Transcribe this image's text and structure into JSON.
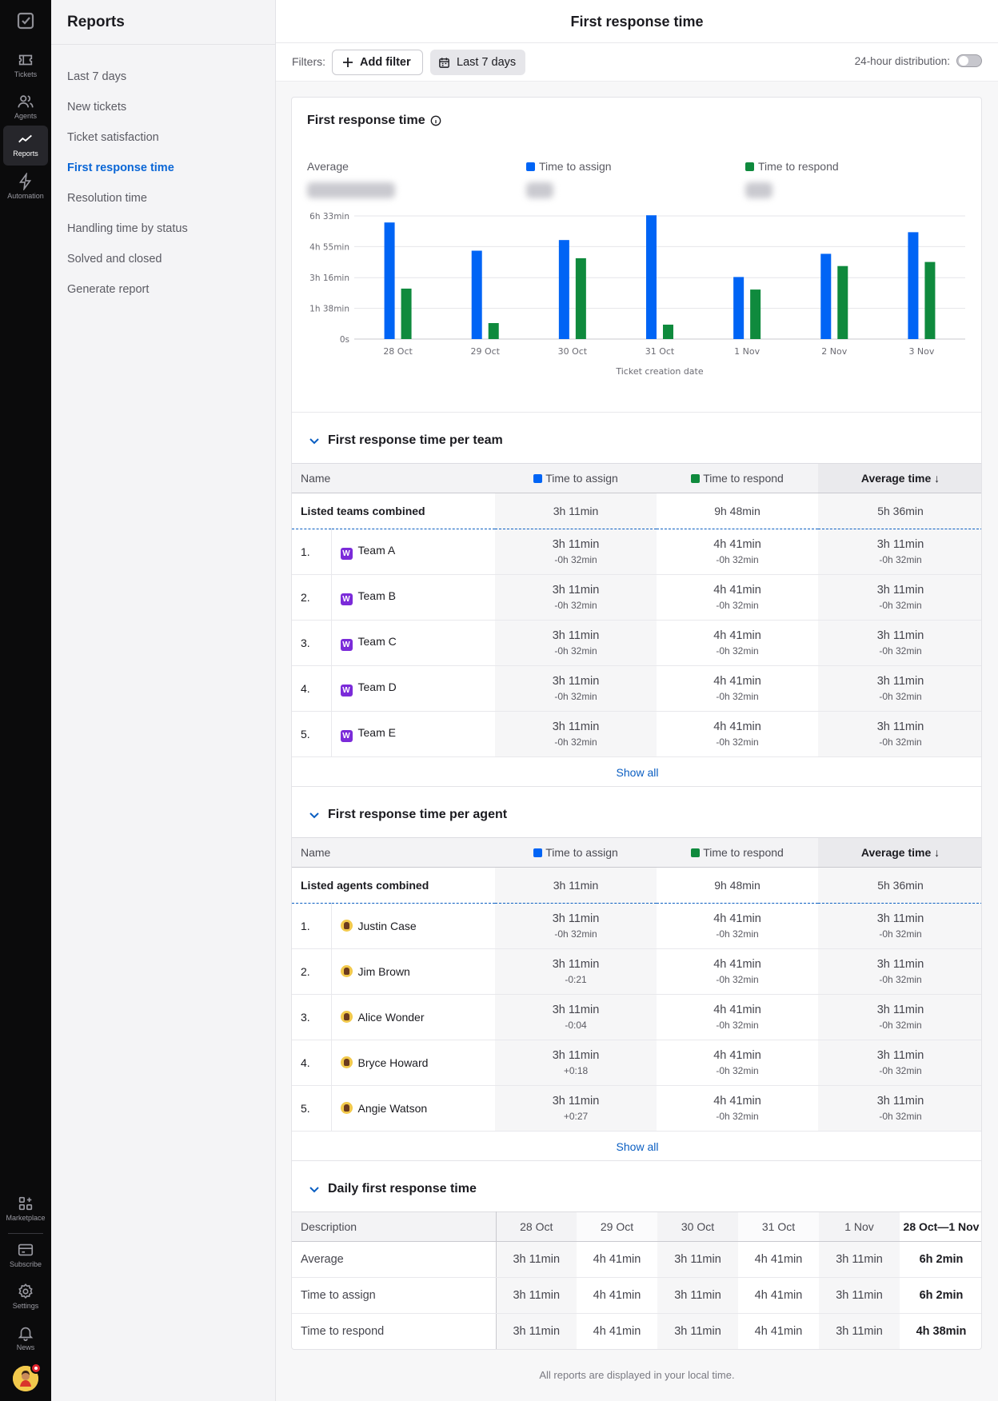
{
  "rail": {
    "items": [
      {
        "id": "tickets",
        "label": "Tickets",
        "icon": "ticket-icon"
      },
      {
        "id": "agents",
        "label": "Agents",
        "icon": "agents-icon"
      },
      {
        "id": "reports",
        "label": "Reports",
        "icon": "chart-line-icon"
      },
      {
        "id": "automation",
        "label": "Automation",
        "icon": "lightning-icon"
      }
    ],
    "bottom": [
      {
        "id": "marketplace",
        "label": "Marketplace",
        "icon": "marketplace-icon"
      },
      {
        "id": "subscribe",
        "label": "Subscribe",
        "icon": "card-icon"
      },
      {
        "id": "settings",
        "label": "Settings",
        "icon": "gear-icon"
      },
      {
        "id": "news",
        "label": "News",
        "icon": "bell-icon"
      }
    ]
  },
  "subnav": {
    "title": "Reports",
    "items": [
      "Last 7 days",
      "New tickets",
      "Ticket satisfaction",
      "First response time",
      "Resolution time",
      "Handling time by status",
      "Solved and closed",
      "Generate report"
    ],
    "active_index": 3
  },
  "page": {
    "title": "First response time",
    "filters_label": "Filters:",
    "add_filter": "Add filter",
    "date_filter": "Last 7 days",
    "distribution_label": "24-hour distribution:"
  },
  "summary": {
    "title": "First response time",
    "average_label": "Average",
    "assign_label": "Time to assign",
    "respond_label": "Time to respond"
  },
  "colors": {
    "assign": "#0064f5",
    "respond": "#0f8a3d",
    "accent": "#0a5ec2"
  },
  "chart_data": {
    "type": "bar",
    "categories": [
      "28 Oct",
      "29 Oct",
      "30 Oct",
      "31 Oct",
      "1 Nov",
      "2 Nov",
      "3 Nov"
    ],
    "series": [
      {
        "name": "Time to assign",
        "values": [
          372,
          282,
          316,
          395,
          198,
          272,
          341
        ]
      },
      {
        "name": "Time to respond",
        "values": [
          161,
          51,
          258,
          46,
          158,
          233,
          246
        ]
      }
    ],
    "yticks": [
      {
        "value": 0,
        "label": "0s"
      },
      {
        "value": 98,
        "label": "1h 38min"
      },
      {
        "value": 196,
        "label": "3h 16min"
      },
      {
        "value": 295,
        "label": "4h 55min"
      },
      {
        "value": 393,
        "label": "6h 33min"
      }
    ],
    "ylim": [
      0,
      393
    ],
    "xlabel": "Ticket creation date",
    "grid": true
  },
  "teams": {
    "title": "First response time per team",
    "headers": {
      "name": "Name",
      "assign": "Time to assign",
      "respond": "Time to respond",
      "avg": "Average time"
    },
    "combined": {
      "label": "Listed teams combined",
      "assign": "3h 11min",
      "respond": "9h 48min",
      "avg": "5h 36min"
    },
    "rows": [
      {
        "num": "1.",
        "name": "Team A",
        "icon": "W",
        "assign": "3h 11min",
        "assign_d": "-0h 32min",
        "respond": "4h 41min",
        "respond_d": "-0h 32min",
        "avg": "3h 11min",
        "avg_d": "-0h 32min"
      },
      {
        "num": "2.",
        "name": "Team B",
        "icon": "W",
        "assign": "3h 11min",
        "assign_d": "-0h 32min",
        "respond": "4h 41min",
        "respond_d": "-0h 32min",
        "avg": "3h 11min",
        "avg_d": "-0h 32min"
      },
      {
        "num": "3.",
        "name": "Team C",
        "icon": "W",
        "assign": "3h 11min",
        "assign_d": "-0h 32min",
        "respond": "4h 41min",
        "respond_d": "-0h 32min",
        "avg": "3h 11min",
        "avg_d": "-0h 32min"
      },
      {
        "num": "4.",
        "name": "Team D",
        "icon": "W",
        "assign": "3h 11min",
        "assign_d": "-0h 32min",
        "respond": "4h 41min",
        "respond_d": "-0h 32min",
        "avg": "3h 11min",
        "avg_d": "-0h 32min"
      },
      {
        "num": "5.",
        "name": "Team E",
        "icon": "W",
        "assign": "3h 11min",
        "assign_d": "-0h 32min",
        "respond": "4h 41min",
        "respond_d": "-0h 32min",
        "avg": "3h 11min",
        "avg_d": "-0h 32min"
      }
    ],
    "show_all": "Show all"
  },
  "agents": {
    "title": "First response time per agent",
    "headers": {
      "name": "Name",
      "assign": "Time to assign",
      "respond": "Time to respond",
      "avg": "Average time"
    },
    "combined": {
      "label": "Listed agents combined",
      "assign": "3h 11min",
      "respond": "9h 48min",
      "avg": "5h 36min"
    },
    "rows": [
      {
        "num": "1.",
        "name": "Justin Case",
        "assign": "3h 11min",
        "assign_d": "-0h 32min",
        "respond": "4h 41min",
        "respond_d": "-0h 32min",
        "avg": "3h 11min",
        "avg_d": "-0h 32min"
      },
      {
        "num": "2.",
        "name": "Jim Brown",
        "assign": "3h 11min",
        "assign_d": "-0:21",
        "respond": "4h 41min",
        "respond_d": "-0h 32min",
        "avg": "3h 11min",
        "avg_d": "-0h 32min"
      },
      {
        "num": "3.",
        "name": "Alice Wonder",
        "assign": "3h 11min",
        "assign_d": "-0:04",
        "respond": "4h 41min",
        "respond_d": "-0h 32min",
        "avg": "3h 11min",
        "avg_d": "-0h 32min"
      },
      {
        "num": "4.",
        "name": "Bryce Howard",
        "assign": "3h 11min",
        "assign_d": "+0:18",
        "respond": "4h 41min",
        "respond_d": "-0h 32min",
        "avg": "3h 11min",
        "avg_d": "-0h 32min"
      },
      {
        "num": "5.",
        "name": "Angie Watson",
        "assign": "3h 11min",
        "assign_d": "+0:27",
        "respond": "4h 41min",
        "respond_d": "-0h 32min",
        "avg": "3h 11min",
        "avg_d": "-0h 32min"
      }
    ],
    "show_all": "Show all"
  },
  "daily": {
    "title": "Daily first response time",
    "headers": [
      "Description",
      "28 Oct",
      "29 Oct",
      "30 Oct",
      "31 Oct",
      "1 Nov",
      "28 Oct—1 Nov"
    ],
    "rows": [
      {
        "label": "Average",
        "values": [
          "3h 11min",
          "4h 41min",
          "3h 11min",
          "4h 41min",
          "3h 11min"
        ],
        "total": "6h 2min"
      },
      {
        "label": "Time to assign",
        "values": [
          "3h 11min",
          "4h 41min",
          "3h 11min",
          "4h 41min",
          "3h 11min"
        ],
        "total": "6h 2min"
      },
      {
        "label": "Time to respond",
        "values": [
          "3h 11min",
          "4h 41min",
          "3h 11min",
          "4h 41min",
          "3h 11min"
        ],
        "total": "4h 38min"
      }
    ]
  },
  "footer": "All reports are displayed in your local time."
}
